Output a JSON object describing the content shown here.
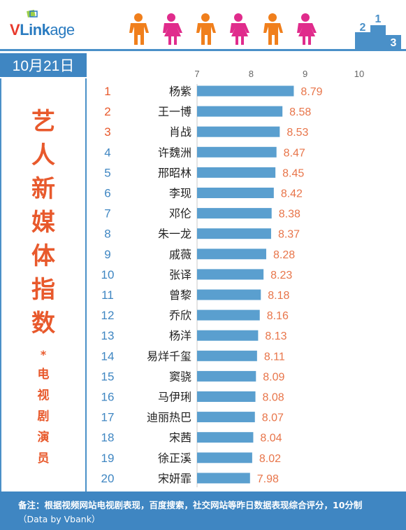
{
  "brand": {
    "v": "V",
    "link": "Link",
    "age": "age"
  },
  "date": "10月21日",
  "side_title": [
    "艺",
    "人",
    "新",
    "媒",
    "体",
    "指",
    "数"
  ],
  "side_star": "*",
  "side_sub": [
    "电",
    "视",
    "剧",
    "演",
    "员"
  ],
  "footer": {
    "note": "备注：根据视频网站电视剧表现，百度搜索，社交网站等昨日数据表现综合评分，10分制",
    "source": "（Data by Vbank）"
  },
  "colors": {
    "bar": "#5a9fcf",
    "rank_top": "#e8592c",
    "rank_rest": "#3f86c2",
    "value": "#e8754a",
    "accent": "#3f86c2"
  },
  "chart_data": {
    "type": "bar",
    "orientation": "horizontal",
    "x_ticks": [
      "7",
      "8",
      "9",
      "10"
    ],
    "xlim": [
      7,
      10
    ],
    "ranks": [
      "1",
      "2",
      "3",
      "4",
      "5",
      "6",
      "7",
      "8",
      "9",
      "10",
      "11",
      "12",
      "13",
      "14",
      "15",
      "16",
      "17",
      "18",
      "19",
      "20"
    ],
    "categories": [
      "杨紫",
      "王一博",
      "肖战",
      "许魏洲",
      "邢昭林",
      "李现",
      "邓伦",
      "朱一龙",
      "戚薇",
      "张译",
      "曾黎",
      "乔欣",
      "杨洋",
      "易烊千玺",
      "窦骁",
      "马伊琍",
      "迪丽热巴",
      "宋茜",
      "徐正溪",
      "宋妍霏"
    ],
    "values": [
      8.79,
      8.58,
      8.53,
      8.47,
      8.45,
      8.42,
      8.38,
      8.37,
      8.28,
      8.23,
      8.18,
      8.16,
      8.13,
      8.11,
      8.09,
      8.08,
      8.07,
      8.04,
      8.02,
      7.98
    ],
    "value_labels": [
      "8.79",
      "8.58",
      "8.53",
      "8.47",
      "8.45",
      "8.42",
      "8.38",
      "8.37",
      "8.28",
      "8.23",
      "8.18",
      "8.16",
      "8.13",
      "8.11",
      "8.09",
      "8.08",
      "8.07",
      "8.04",
      "8.02",
      "7.98"
    ],
    "grid": false
  }
}
